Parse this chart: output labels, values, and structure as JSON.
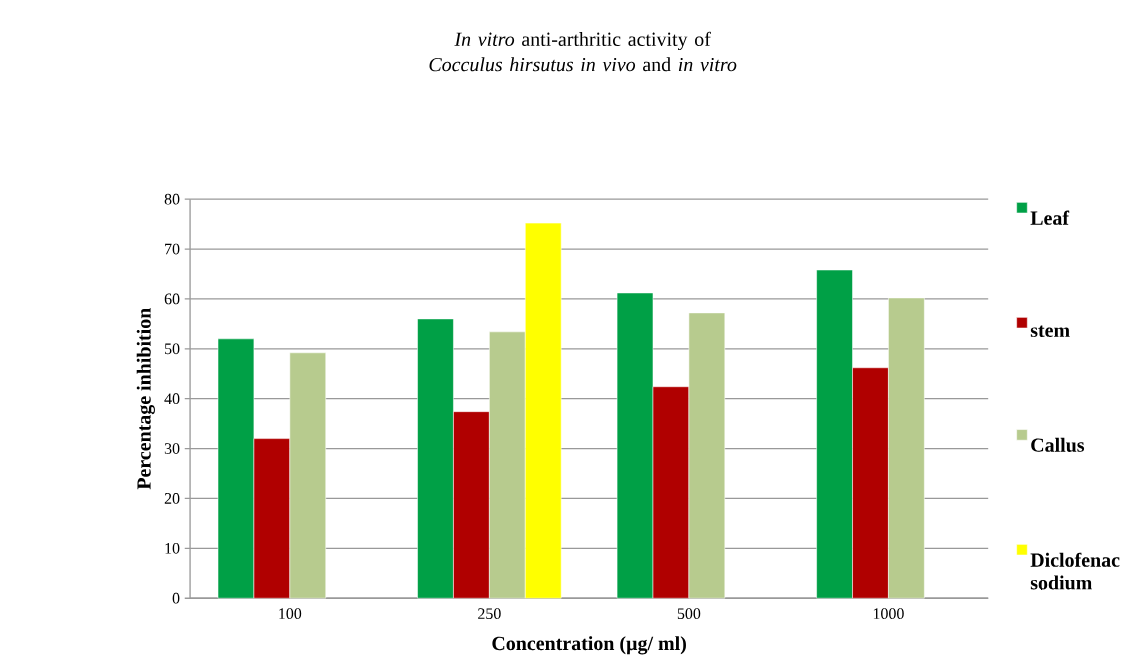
{
  "chart_data": {
    "type": "bar",
    "title": "*In vitro* anti-arthritic activity of *Cocculus hirsutus in vivo* and *in vitro*",
    "xlabel": "Concentration (µg/ ml)",
    "ylabel": "Percentage inhibition",
    "categories": [
      "100",
      "250",
      "500",
      "1000"
    ],
    "series": [
      {
        "name": "Leaf",
        "color": "#00a046",
        "values": [
          52,
          56,
          61.2,
          65.8
        ]
      },
      {
        "name": "stem",
        "color": "#b00000",
        "values": [
          32,
          37.4,
          42.4,
          46.2
        ]
      },
      {
        "name": "Callus",
        "color": "#b7cb8e",
        "values": [
          49.2,
          53.4,
          57.2,
          60.2
        ]
      },
      {
        "name": "Diclofenac sodium",
        "color": "#ffff00",
        "values": [
          null,
          75.2,
          null,
          null
        ]
      }
    ],
    "ylim": [
      0,
      80
    ],
    "yticks": [
      0,
      10,
      20,
      30,
      40,
      50,
      60,
      70,
      80
    ],
    "grid": "y",
    "legend": "right"
  }
}
